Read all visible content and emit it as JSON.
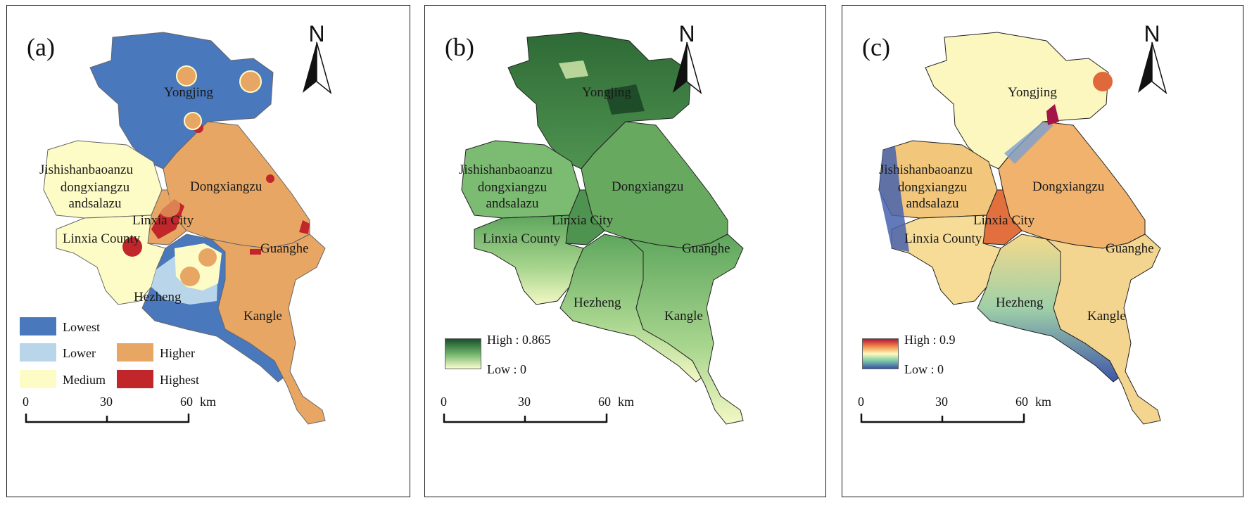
{
  "panels": [
    {
      "label": "(a)",
      "north": "N",
      "places": [
        "Yongjing",
        "Jishishanbaoanzu",
        "dongxiangzu",
        "andsalazu",
        "Dongxiangzu",
        "Linxia City",
        "Linxia County",
        "Guanghe",
        "Hezheng",
        "Kangle"
      ],
      "legend": [
        {
          "label": "Lowest",
          "color": "#4a78bc"
        },
        {
          "label": "Lower",
          "color": "#b9d5ea"
        },
        {
          "label": "Higher",
          "color": "#e8a664"
        },
        {
          "label": "Medium",
          "color": "#fefcc6"
        },
        {
          "label": "Highest",
          "color": "#c0262a"
        }
      ],
      "scale": {
        "ticks": [
          "0",
          "30",
          "60"
        ],
        "unit": "km"
      }
    },
    {
      "label": "(b)",
      "north": "N",
      "places": [
        "Yongjing",
        "Jishishanbaoanzu",
        "dongxiangzu",
        "andsalazu",
        "Dongxiangzu",
        "Linxia City",
        "Linxia County",
        "Guanghe",
        "Hezheng",
        "Kangle"
      ],
      "ramp": {
        "high": "High : 0.865",
        "low": "Low : 0",
        "colors": [
          "#17502a",
          "#6fb36a",
          "#fdfdd0"
        ]
      },
      "scale": {
        "ticks": [
          "0",
          "30",
          "60"
        ],
        "unit": "km"
      }
    },
    {
      "label": "(c)",
      "north": "N",
      "places": [
        "Yongjing",
        "Jishishanbaoanzu",
        "dongxiangzu",
        "andsalazu",
        "Dongxiangzu",
        "Linxia City",
        "Linxia County",
        "Guanghe",
        "Hezheng",
        "Kangle"
      ],
      "ramp": {
        "high": "High : 0.9",
        "low": "Low : 0",
        "colors": [
          "#b3123c",
          "#f08a48",
          "#fdfbc0",
          "#76c4a6",
          "#3a4fa8"
        ]
      },
      "scale": {
        "ticks": [
          "0",
          "30",
          "60"
        ],
        "unit": "km"
      }
    }
  ]
}
